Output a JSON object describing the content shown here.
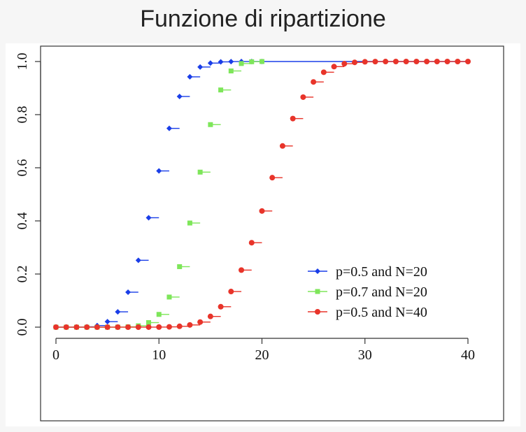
{
  "title": "Funzione di ripartizione",
  "chart_data": {
    "type": "scatter",
    "title": "Funzione di ripartizione",
    "xlabel": "",
    "ylabel": "",
    "xlim": [
      0,
      40
    ],
    "ylim": [
      0,
      1
    ],
    "x_ticks": [
      "0",
      "10",
      "20",
      "30",
      "40"
    ],
    "y_ticks": [
      "0.0",
      "0.2",
      "0.4",
      "0.6",
      "0.8",
      "1.0"
    ],
    "legend_position": "bottom-right",
    "grid": false,
    "series": [
      {
        "name": "p=0.5 and N=20",
        "color": "#1a3ee8",
        "marker": "diamond",
        "x": [
          0,
          1,
          2,
          3,
          4,
          5,
          6,
          7,
          8,
          9,
          10,
          11,
          12,
          13,
          14,
          15,
          16,
          17,
          18,
          19,
          20
        ],
        "y": [
          0,
          0,
          0.0002,
          0.0013,
          0.0059,
          0.0207,
          0.0577,
          0.1316,
          0.2517,
          0.4119,
          0.5881,
          0.7483,
          0.8684,
          0.9423,
          0.9793,
          0.9941,
          0.9987,
          0.9998,
          1,
          1,
          1
        ]
      },
      {
        "name": "p=0.7 and N=20",
        "color": "#7ee65a",
        "marker": "square",
        "x": [
          0,
          1,
          2,
          3,
          4,
          5,
          6,
          7,
          8,
          9,
          10,
          11,
          12,
          13,
          14,
          15,
          16,
          17,
          18,
          19,
          20
        ],
        "y": [
          0,
          0,
          0,
          0,
          0,
          0,
          0.0003,
          0.0013,
          0.0051,
          0.0171,
          0.048,
          0.1133,
          0.2277,
          0.392,
          0.5836,
          0.7625,
          0.8929,
          0.9645,
          0.9924,
          0.9992,
          1
        ]
      },
      {
        "name": "p=0.5 and N=40",
        "color": "#e8342a",
        "marker": "circle",
        "x": [
          0,
          1,
          2,
          3,
          4,
          5,
          6,
          7,
          8,
          9,
          10,
          11,
          12,
          13,
          14,
          15,
          16,
          17,
          18,
          19,
          20,
          21,
          22,
          23,
          24,
          25,
          26,
          27,
          28,
          29,
          30,
          31,
          32,
          33,
          34,
          35,
          36,
          37,
          38,
          39,
          40
        ],
        "y": [
          0,
          0,
          0,
          0,
          0,
          0,
          0,
          0,
          0,
          0.0001,
          0.0003,
          0.0011,
          0.0032,
          0.0083,
          0.0192,
          0.0403,
          0.0769,
          0.1341,
          0.2148,
          0.3179,
          0.4373,
          0.5627,
          0.6821,
          0.7852,
          0.8659,
          0.9231,
          0.9597,
          0.9808,
          0.9917,
          0.9968,
          0.9989,
          0.9997,
          0.9999,
          1,
          1,
          1,
          1,
          1,
          1,
          1,
          1
        ]
      }
    ]
  }
}
